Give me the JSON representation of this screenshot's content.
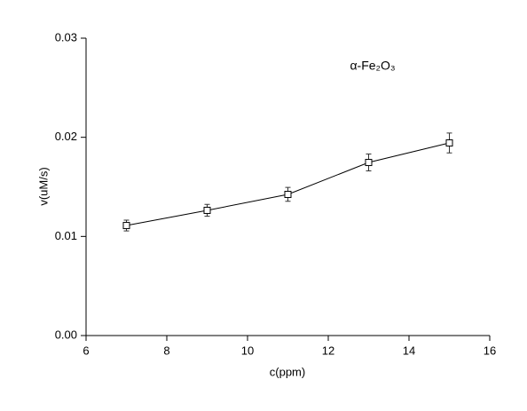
{
  "chart_data": {
    "type": "line",
    "x": [
      7,
      9,
      11,
      13,
      15
    ],
    "values": [
      0.0111,
      0.01263,
      0.01424,
      0.01746,
      0.01943
    ],
    "errors": [
      0.00054,
      0.0006,
      0.0007,
      0.00085,
      0.001
    ],
    "color": "#000000",
    "xlabel": "c(ppm)",
    "ylabel": "v(uM/s)",
    "annotation": "α-Fe₂O₃",
    "xlim": [
      6,
      16
    ],
    "xticks": [
      6,
      8,
      10,
      12,
      14,
      16
    ],
    "ylim": [
      0,
      0.03
    ],
    "yticks": [
      {
        "value": 0,
        "label": "0.00"
      },
      {
        "value": 0.01,
        "label": "0.01"
      },
      {
        "value": 0.02,
        "label": "0.02"
      },
      {
        "value": 0.03,
        "label": "0.03"
      }
    ]
  }
}
